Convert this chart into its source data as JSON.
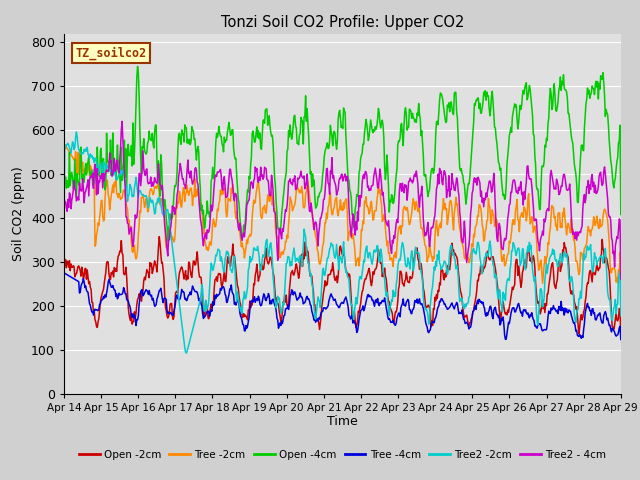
{
  "title": "Tonzi Soil CO2 Profile: Upper CO2",
  "ylabel": "Soil CO2 (ppm)",
  "xlabel": "Time",
  "legend_label": "TZ_soilco2",
  "ylim": [
    0,
    820
  ],
  "yticks": [
    0,
    100,
    200,
    300,
    400,
    500,
    600,
    700,
    800
  ],
  "series_colors": {
    "Open -2cm": "#cc0000",
    "Tree -2cm": "#ff8800",
    "Open -4cm": "#00cc00",
    "Tree -4cm": "#0000dd",
    "Tree2 -2cm": "#00cccc",
    "Tree2 - 4cm": "#cc00cc"
  },
  "fig_bg": "#d0d0d0",
  "axes_bg": "#e0e0e0",
  "grid_color": "#ffffff",
  "x_tick_labels": [
    "Apr 14",
    "Apr 15",
    "Apr 16",
    "Apr 17",
    "Apr 18",
    "Apr 19",
    "Apr 20",
    "Apr 21",
    "Apr 22",
    "Apr 23",
    "Apr 24",
    "Apr 25",
    "Apr 26",
    "Apr 27",
    "Apr 28",
    "Apr 29"
  ],
  "legend_box_facecolor": "#ffffc0",
  "legend_box_edgecolor": "#993300",
  "legend_text_color": "#993300"
}
